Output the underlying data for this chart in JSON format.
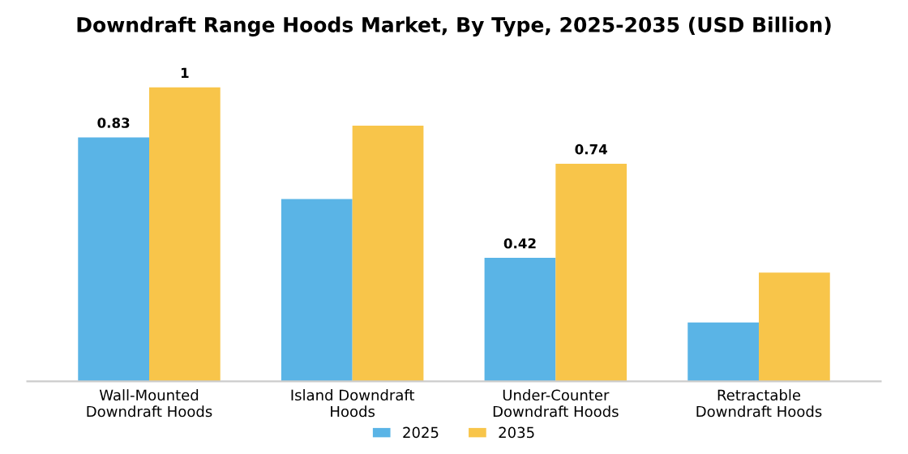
{
  "chart_data": {
    "type": "bar",
    "title": "Downdraft Range Hoods Market, By Type, 2025-2035 (USD Billion)",
    "categories": [
      "Wall-Mounted\nDowndraft Hoods",
      "Island Downdraft\nHoods",
      "Under-Counter\nDowndraft Hoods",
      "Retractable\nDowndraft Hoods"
    ],
    "series": [
      {
        "name": "2025",
        "color": "#5ab4e6",
        "values": [
          0.83,
          0.62,
          0.42,
          0.2
        ],
        "value_labels": [
          "0.83",
          null,
          "0.42",
          null
        ]
      },
      {
        "name": "2035",
        "color": "#f8c54a",
        "values": [
          1,
          0.87,
          0.74,
          0.37
        ],
        "value_labels": [
          "1",
          null,
          "0.74",
          null
        ]
      }
    ],
    "legend": "bottom",
    "grid": false
  }
}
